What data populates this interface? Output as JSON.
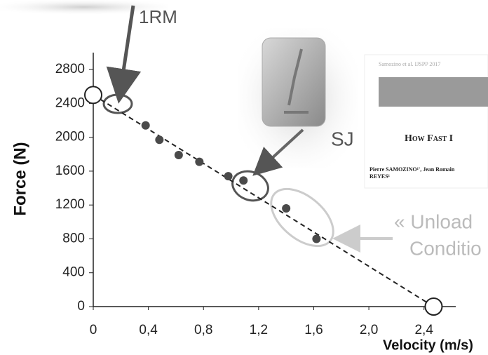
{
  "chart_data": {
    "type": "scatter",
    "x_label": "Velocity (m/s)",
    "y_label": "Force (N)",
    "x": [
      0.38,
      0.48,
      0.62,
      0.77,
      0.98,
      1.09,
      1.4,
      1.62
    ],
    "series": [
      {
        "color": "#4a4a4a",
        "values": [
          2140,
          1970,
          1790,
          1710,
          1540,
          1490,
          1160,
          800
        ]
      }
    ],
    "fit": {
      "x": [
        0,
        2.47
      ],
      "values": [
        2500,
        0
      ]
    },
    "xlim": [
      0,
      2.6
    ],
    "ylim": [
      0,
      3000
    ],
    "xticks": [
      0,
      {
        "value": 0.4,
        "label": "0,4"
      },
      {
        "value": 0.8,
        "label": "0,8"
      },
      {
        "value": 1.2,
        "label": "1,2"
      },
      {
        "value": 1.6,
        "label": "1,6"
      },
      {
        "value": 2.0,
        "label": "2,0"
      },
      {
        "value": 2.4,
        "label": "2,4"
      }
    ],
    "yticks": [
      0,
      400,
      800,
      1200,
      1600,
      2000,
      2400,
      2800
    ],
    "annotations": [
      "1RM",
      "SJ",
      "« Unload",
      "Conditio"
    ],
    "inset": {
      "header": "Samozino et al. IJSPP 2017",
      "title": "How Fast I",
      "authors": "Pierre SAMOZINO¹', Jean Romain",
      "authors2": "REYES¹"
    }
  }
}
